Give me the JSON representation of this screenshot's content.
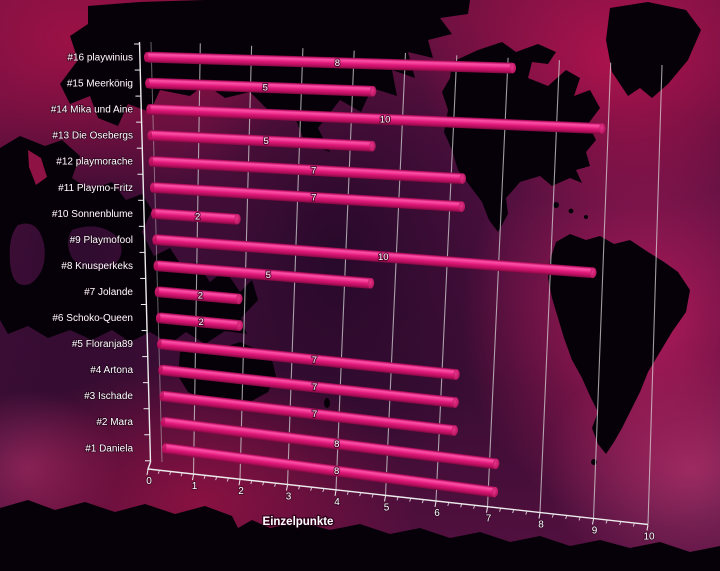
{
  "chart_data": {
    "type": "bar",
    "orientation": "horizontal",
    "style": "3d-cylinder-bars-over-world-map",
    "title": "",
    "xlabel": "Einzelpunkte",
    "ylabel": "",
    "categories": [
      "#16 playwinius",
      "#15 Meerkönig",
      "#14 Mika und Aine",
      "#13 Die Osebergs",
      "#12 playmorache",
      "#11 Playmo-Fritz",
      "#10 Sonnenblume",
      "#9 Playmofool",
      "#8 Knusperkeks",
      "#7 Jolande",
      "#6 Schoko-Queen",
      "#5 Floranja89",
      "#4 Artona",
      "#3 Ischade",
      "#2 Mara",
      "#1 Daniela"
    ],
    "values": [
      8,
      5,
      10,
      5,
      7,
      7,
      2,
      10,
      5,
      2,
      2,
      7,
      7,
      7,
      8,
      8
    ],
    "x_ticks": [
      0,
      1,
      2,
      3,
      4,
      5,
      6,
      7,
      8,
      9,
      10
    ],
    "xlim": [
      0,
      10
    ],
    "grid": true,
    "legend": false,
    "colors": {
      "bar_main": "#e0187a",
      "bar_highlight": "#fb51a7",
      "bar_shadow": "#7c0940",
      "gridline": "#d9d9d9",
      "axis": "#ececec",
      "text": "#ffffff",
      "ocean": "#6d1140",
      "land": "#060108"
    }
  }
}
